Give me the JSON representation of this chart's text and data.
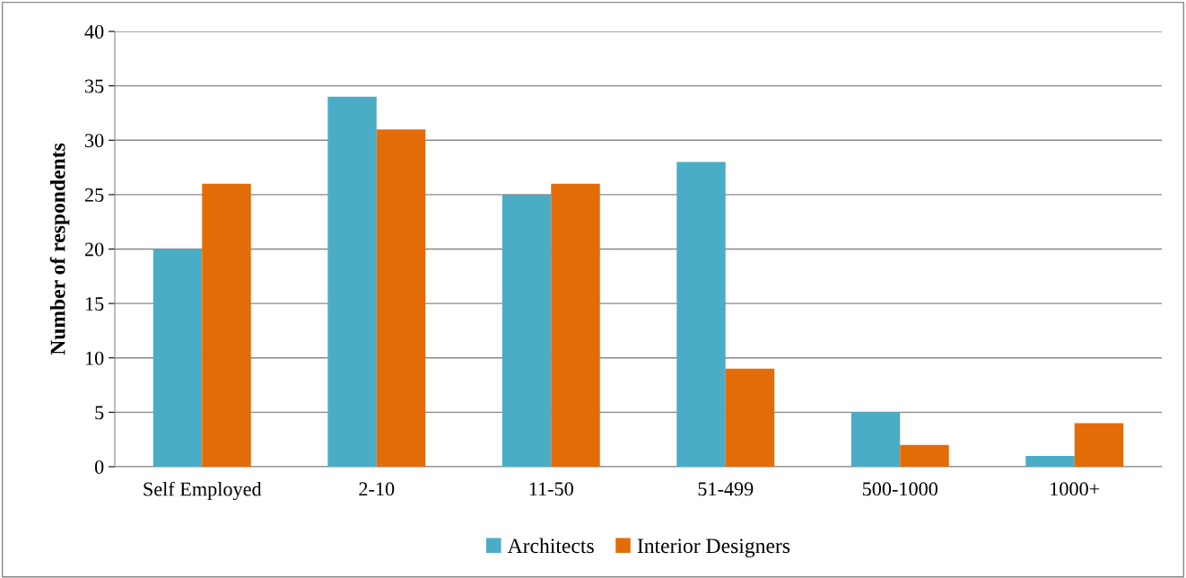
{
  "chart_data": {
    "type": "bar",
    "ylabel": "Number of respondents",
    "categories": [
      "Self Employed",
      "2-10",
      "11-50",
      "51-499",
      "500-1000",
      "1000+"
    ],
    "series": [
      {
        "name": "Architects",
        "color": "#4bacc6",
        "values": [
          20,
          34,
          25,
          28,
          5,
          1
        ]
      },
      {
        "name": "Interior Designers",
        "color": "#e36c09",
        "values": [
          26,
          31,
          26,
          9,
          2,
          4
        ]
      }
    ],
    "ylim": [
      0,
      40
    ],
    "yticks": [
      0,
      5,
      10,
      15,
      20,
      25,
      30,
      35,
      40
    ],
    "grid": "y",
    "legend": "bottom"
  }
}
